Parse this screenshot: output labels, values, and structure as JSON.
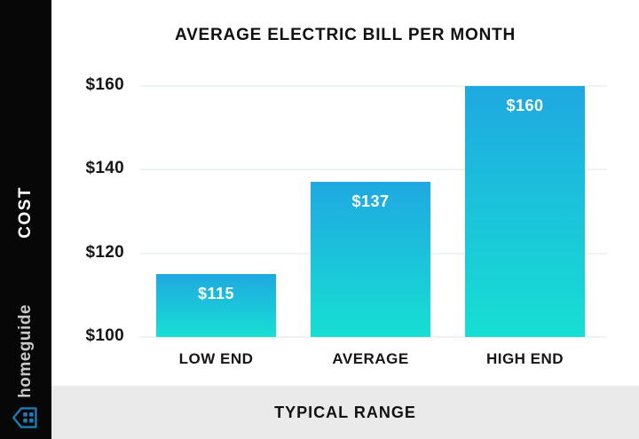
{
  "sidebar": {
    "cost_label": "COST",
    "brand": "homeguide"
  },
  "footer": {
    "label": "TYPICAL RANGE"
  },
  "chart_data": {
    "type": "bar",
    "title": "AVERAGE ELECTRIC BILL PER MONTH",
    "categories": [
      "LOW END",
      "AVERAGE",
      "HIGH END"
    ],
    "values": [
      115,
      137,
      160
    ],
    "value_labels": [
      "$115",
      "$137",
      "$160"
    ],
    "ylabel": "COST",
    "xlabel": "TYPICAL RANGE",
    "ylim": [
      100,
      160
    ],
    "yticks": [
      {
        "value": 160,
        "label": "$160"
      },
      {
        "value": 140,
        "label": "$140"
      },
      {
        "value": 120,
        "label": "$120"
      },
      {
        "value": 100,
        "label": "$100"
      }
    ],
    "grid": true,
    "legend": false,
    "colors": {
      "bar_gradient_top": "#1FA8E1",
      "bar_gradient_bottom": "#17DFD3",
      "value_label": "#FFFFFF",
      "axis_text": "#161616",
      "gridline": "#F0F3F3"
    }
  },
  "colors": {
    "sidebar_background": "#070707",
    "chart_background": "#FFFFFF",
    "footer_band": "#EAEAEA",
    "brand_blue": "#1D7CB4"
  }
}
